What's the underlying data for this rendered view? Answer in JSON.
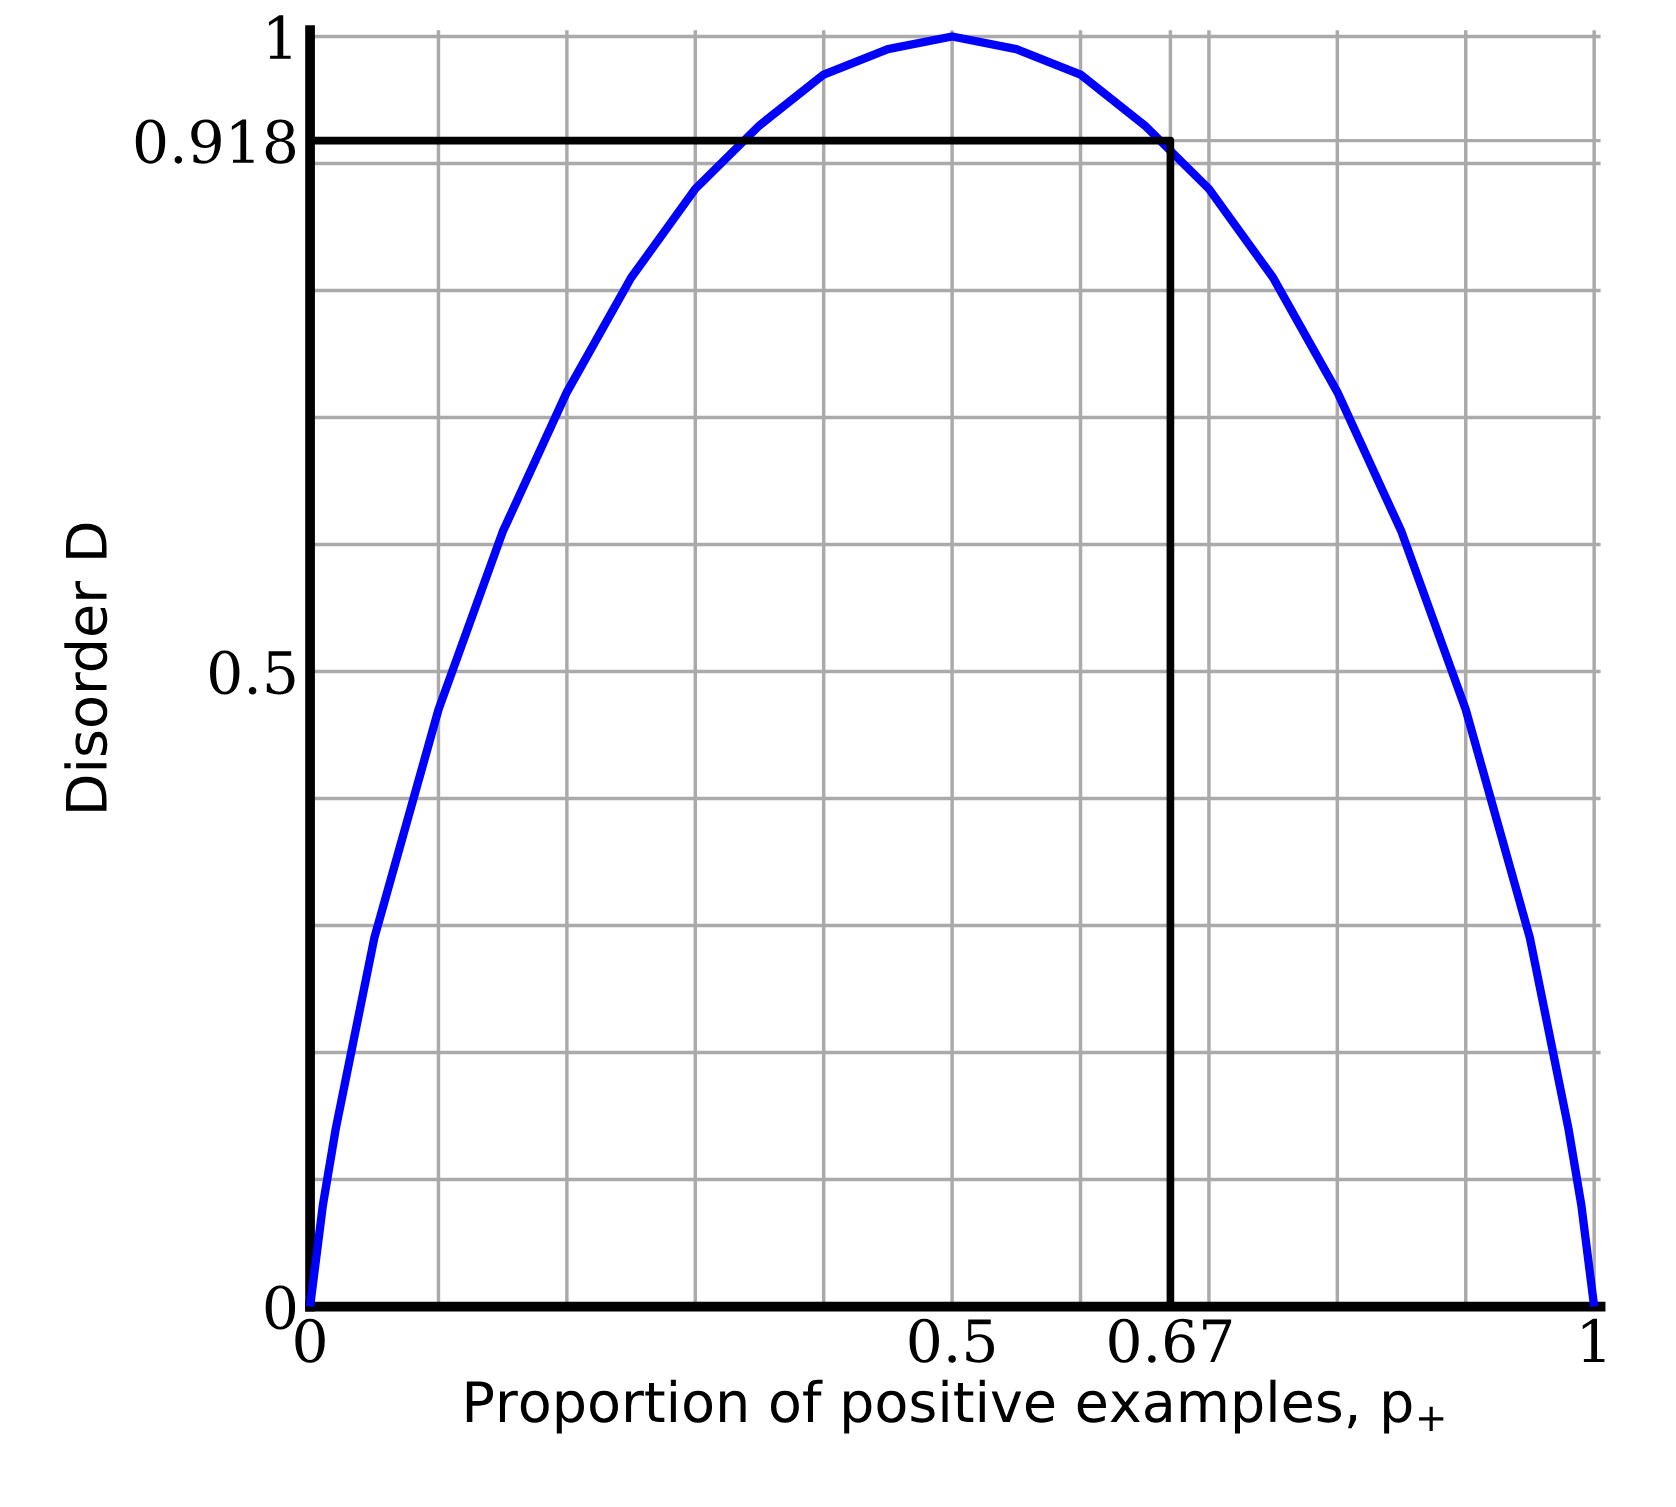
{
  "chart_data": {
    "type": "line",
    "xlabel": "Proportion of positive examples, p$_{+}$",
    "ylabel": "Disorder D",
    "series": [
      {
        "color": "#0000ff",
        "x": [
          0,
          0.01,
          0.02,
          0.05,
          0.1,
          0.15,
          0.2,
          0.25,
          0.3,
          0.35,
          0.4,
          0.45,
          0.5,
          0.55,
          0.6,
          0.65,
          0.7,
          0.75,
          0.8,
          0.85,
          0.9,
          0.95,
          0.98,
          0.99,
          1
        ],
        "values": [
          0,
          0.08,
          0.14,
          0.29,
          0.47,
          0.61,
          0.72,
          0.81,
          0.88,
          0.93,
          0.97,
          0.99,
          1,
          0.99,
          0.97,
          0.93,
          0.88,
          0.81,
          0.72,
          0.61,
          0.47,
          0.29,
          0.14,
          0.08,
          0
        ]
      },
      {
        "color": "#000000",
        "x": [
          0,
          0.67,
          0.67
        ],
        "values": [
          0.918,
          0.918,
          0
        ]
      }
    ],
    "xlim": [
      0,
      1.005
    ],
    "ylim": [
      0,
      1.005
    ],
    "xticks": [
      0,
      {
        "value": 0.1,
        "label": null
      },
      {
        "value": 0.2,
        "label": null
      },
      {
        "value": 0.3,
        "label": null
      },
      {
        "value": 0.4,
        "label": null
      },
      0.5,
      {
        "value": 0.6,
        "label": null
      },
      0.67,
      {
        "value": 0.7,
        "label": null
      },
      {
        "value": 0.8,
        "label": null
      },
      {
        "value": 0.9,
        "label": null
      },
      1
    ],
    "yticks": [
      0,
      {
        "value": 0.1,
        "label": null
      },
      {
        "value": 0.2,
        "label": null
      },
      {
        "value": 0.3,
        "label": null
      },
      {
        "value": 0.4,
        "label": null
      },
      0.5,
      {
        "value": 0.6,
        "label": null
      },
      {
        "value": 0.7,
        "label": null
      },
      {
        "value": 0.8,
        "label": null
      },
      {
        "value": 0.9,
        "label": null
      },
      0.918,
      1
    ],
    "grid": true,
    "legend": false,
    "marker": "none",
    "line_style": "solid"
  }
}
